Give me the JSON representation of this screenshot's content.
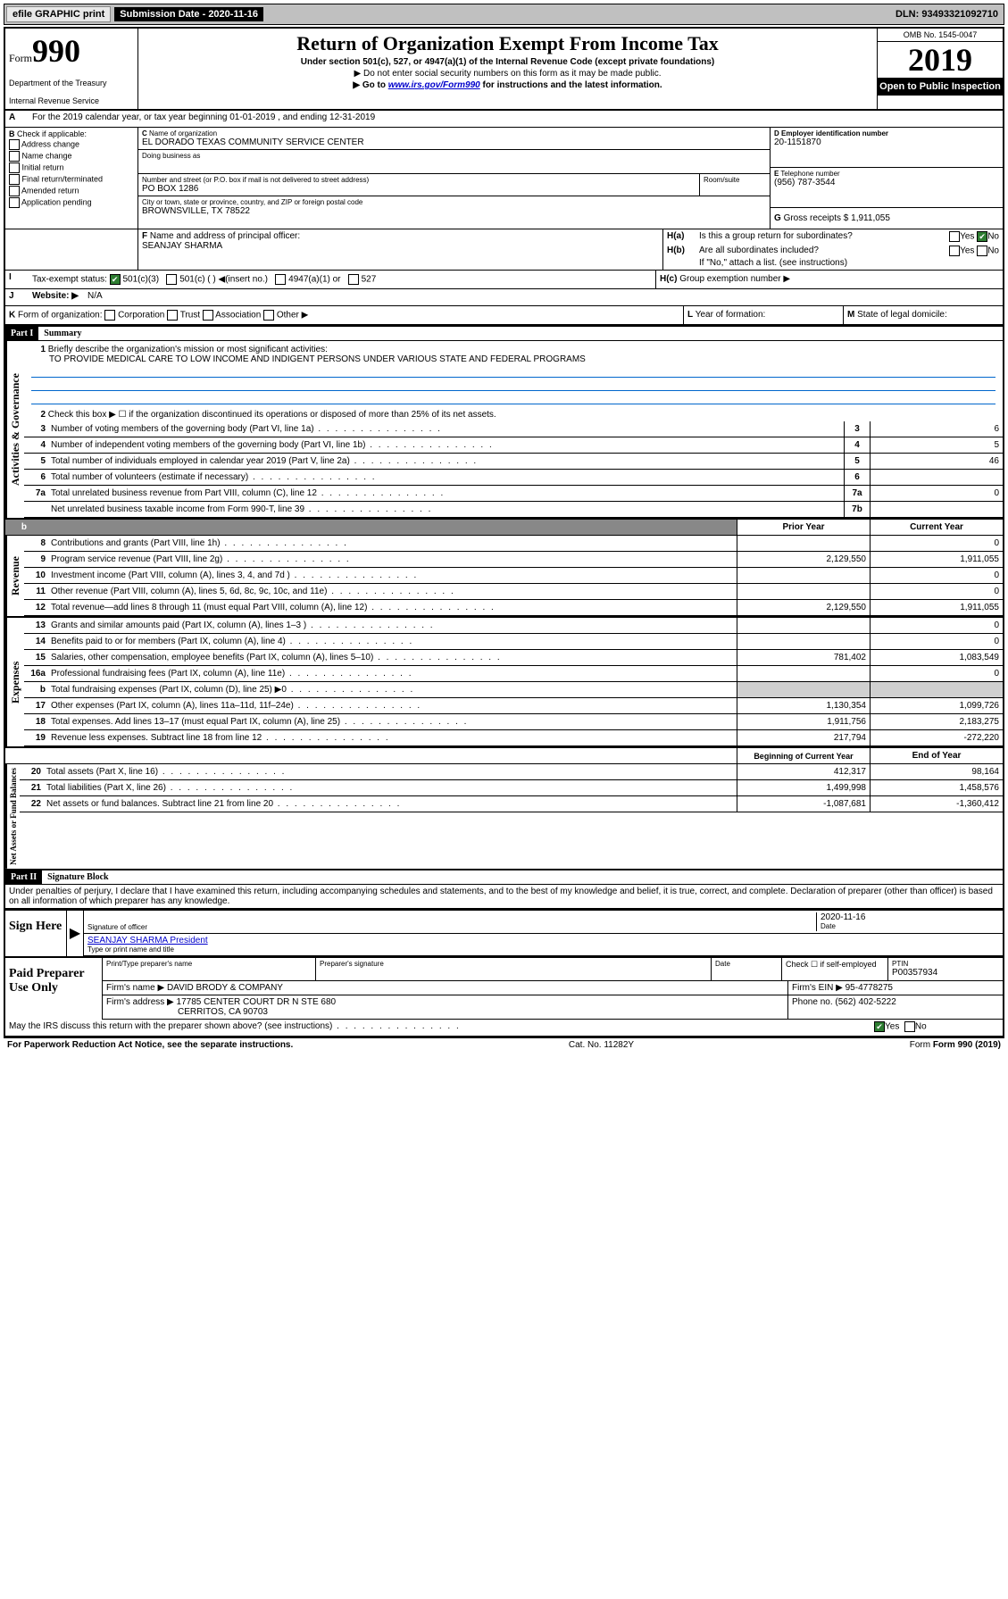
{
  "topbar": {
    "efile": "efile GRAPHIC print",
    "submission": "Submission Date - 2020-11-16",
    "dln": "DLN: 93493321092710"
  },
  "header": {
    "form_word": "Form",
    "form_num": "990",
    "dept": "Department of the Treasury",
    "irs": "Internal Revenue Service",
    "title": "Return of Organization Exempt From Income Tax",
    "sub": "Under section 501(c), 527, or 4947(a)(1) of the Internal Revenue Code (except private foundations)",
    "line1": "▶ Do not enter social security numbers on this form as it may be made public.",
    "line2a": "▶ Go to ",
    "line2_link": "www.irs.gov/Form990",
    "line2b": " for instructions and the latest information.",
    "omb": "OMB No. 1545-0047",
    "year": "2019",
    "open": "Open to Public Inspection"
  },
  "A": {
    "text": "For the 2019 calendar year, or tax year beginning 01-01-2019    , and ending 12-31-2019"
  },
  "B": {
    "label": "Check if applicable:",
    "items": [
      "Address change",
      "Name change",
      "Initial return",
      "Final return/terminated",
      "Amended return",
      "Application pending"
    ]
  },
  "C": {
    "name_label": "Name of organization",
    "name": "EL DORADO TEXAS COMMUNITY SERVICE CENTER",
    "dba_label": "Doing business as",
    "street_label": "Number and street (or P.O. box if mail is not delivered to street address)",
    "room_label": "Room/suite",
    "street": "PO BOX 1286",
    "city_label": "City or town, state or province, country, and ZIP or foreign postal code",
    "city": "BROWNSVILLE, TX  78522"
  },
  "D": {
    "label": "Employer identification number",
    "val": "20-1151870"
  },
  "E": {
    "label": "Telephone number",
    "val": "(956) 787-3544"
  },
  "G": {
    "label": "Gross receipts $",
    "val": "1,911,055"
  },
  "F": {
    "label": "Name and address of principal officer:",
    "val": "SEANJAY SHARMA"
  },
  "H": {
    "a": "Is this a group return for subordinates?",
    "b": "Are all subordinates included?",
    "b_note": "If \"No,\" attach a list. (see instructions)",
    "c": "Group exemption number ▶"
  },
  "I": {
    "label": "Tax-exempt status:",
    "opts": [
      "501(c)(3)",
      "501(c) (  ) ◀(insert no.)",
      "4947(a)(1) or",
      "527"
    ]
  },
  "J": {
    "label": "Website: ▶",
    "val": "N/A"
  },
  "K": {
    "label": "Form of organization:",
    "opts": [
      "Corporation",
      "Trust",
      "Association",
      "Other ▶"
    ]
  },
  "L": {
    "label": "Year of formation:"
  },
  "M": {
    "label": "State of legal domicile:"
  },
  "part1": {
    "header": "Part I",
    "title": "Summary",
    "mission_label": "Briefly describe the organization's mission or most significant activities:",
    "mission": "TO PROVIDE MEDICAL CARE TO LOW INCOME AND INDIGENT PERSONS UNDER VARIOUS STATE AND FEDERAL PROGRAMS",
    "line2": "Check this box ▶ ☐  if the organization discontinued its operations or disposed of more than 25% of its net assets.",
    "lines": [
      {
        "n": "3",
        "d": "Number of voting members of the governing body (Part VI, line 1a)",
        "box": "3",
        "v": "6"
      },
      {
        "n": "4",
        "d": "Number of independent voting members of the governing body (Part VI, line 1b)",
        "box": "4",
        "v": "5"
      },
      {
        "n": "5",
        "d": "Total number of individuals employed in calendar year 2019 (Part V, line 2a)",
        "box": "5",
        "v": "46"
      },
      {
        "n": "6",
        "d": "Total number of volunteers (estimate if necessary)",
        "box": "6",
        "v": ""
      },
      {
        "n": "7a",
        "d": "Total unrelated business revenue from Part VIII, column (C), line 12",
        "box": "7a",
        "v": "0"
      },
      {
        "n": "",
        "d": "Net unrelated business taxable income from Form 990-T, line 39",
        "box": "7b",
        "v": ""
      }
    ],
    "col_headers": {
      "prior": "Prior Year",
      "current": "Current Year",
      "begin": "Beginning of Current Year",
      "end": "End of Year"
    },
    "revenue": [
      {
        "n": "8",
        "d": "Contributions and grants (Part VIII, line 1h)",
        "p": "",
        "c": "0"
      },
      {
        "n": "9",
        "d": "Program service revenue (Part VIII, line 2g)",
        "p": "2,129,550",
        "c": "1,911,055"
      },
      {
        "n": "10",
        "d": "Investment income (Part VIII, column (A), lines 3, 4, and 7d )",
        "p": "",
        "c": "0"
      },
      {
        "n": "11",
        "d": "Other revenue (Part VIII, column (A), lines 5, 6d, 8c, 9c, 10c, and 11e)",
        "p": "",
        "c": "0"
      },
      {
        "n": "12",
        "d": "Total revenue—add lines 8 through 11 (must equal Part VIII, column (A), line 12)",
        "p": "2,129,550",
        "c": "1,911,055"
      }
    ],
    "expenses": [
      {
        "n": "13",
        "d": "Grants and similar amounts paid (Part IX, column (A), lines 1–3 )",
        "p": "",
        "c": "0"
      },
      {
        "n": "14",
        "d": "Benefits paid to or for members (Part IX, column (A), line 4)",
        "p": "",
        "c": "0"
      },
      {
        "n": "15",
        "d": "Salaries, other compensation, employee benefits (Part IX, column (A), lines 5–10)",
        "p": "781,402",
        "c": "1,083,549"
      },
      {
        "n": "16a",
        "d": "Professional fundraising fees (Part IX, column (A), line 11e)",
        "p": "",
        "c": "0"
      },
      {
        "n": "b",
        "d": "Total fundraising expenses (Part IX, column (D), line 25) ▶0",
        "p": "gray",
        "c": "gray"
      },
      {
        "n": "17",
        "d": "Other expenses (Part IX, column (A), lines 11a–11d, 11f–24e)",
        "p": "1,130,354",
        "c": "1,099,726"
      },
      {
        "n": "18",
        "d": "Total expenses. Add lines 13–17 (must equal Part IX, column (A), line 25)",
        "p": "1,911,756",
        "c": "2,183,275"
      },
      {
        "n": "19",
        "d": "Revenue less expenses. Subtract line 18 from line 12",
        "p": "217,794",
        "c": "-272,220"
      }
    ],
    "net": [
      {
        "n": "20",
        "d": "Total assets (Part X, line 16)",
        "p": "412,317",
        "c": "98,164"
      },
      {
        "n": "21",
        "d": "Total liabilities (Part X, line 26)",
        "p": "1,499,998",
        "c": "1,458,576"
      },
      {
        "n": "22",
        "d": "Net assets or fund balances. Subtract line 21 from line 20",
        "p": "-1,087,681",
        "c": "-1,360,412"
      }
    ],
    "vlabels": {
      "gov": "Activities & Governance",
      "rev": "Revenue",
      "exp": "Expenses",
      "net": "Net Assets or Fund Balances"
    }
  },
  "part2": {
    "header": "Part II",
    "title": "Signature Block",
    "perjury": "Under penalties of perjury, I declare that I have examined this return, including accompanying schedules and statements, and to the best of my knowledge and belief, it is true, correct, and complete. Declaration of preparer (other than officer) is based on all information of which preparer has any knowledge.",
    "sign_here": "Sign Here",
    "sig_officer": "Signature of officer",
    "sig_date": "2020-11-16",
    "date_label": "Date",
    "typed_name": "SEANJAY SHARMA  President",
    "typed_label": "Type or print name and title",
    "paid": "Paid Preparer Use Only",
    "prep_name_label": "Print/Type preparer's name",
    "prep_sig_label": "Preparer's signature",
    "check_self": "Check ☐ if self-employed",
    "ptin_label": "PTIN",
    "ptin": "P00357934",
    "firm_name_label": "Firm's name    ▶",
    "firm_name": "DAVID BRODY & COMPANY",
    "firm_ein_label": "Firm's EIN ▶",
    "firm_ein": "95-4778275",
    "firm_addr_label": "Firm's address ▶",
    "firm_addr": "17785 CENTER COURT DR N STE 680",
    "firm_addr2": "CERRITOS, CA  90703",
    "phone_label": "Phone no.",
    "phone": "(562) 402-5222",
    "discuss": "May the IRS discuss this return with the preparer shown above? (see instructions)"
  },
  "footer": {
    "pra": "For Paperwork Reduction Act Notice, see the separate instructions.",
    "cat": "Cat. No. 11282Y",
    "form": "Form 990 (2019)"
  },
  "yes": "Yes",
  "no": "No"
}
